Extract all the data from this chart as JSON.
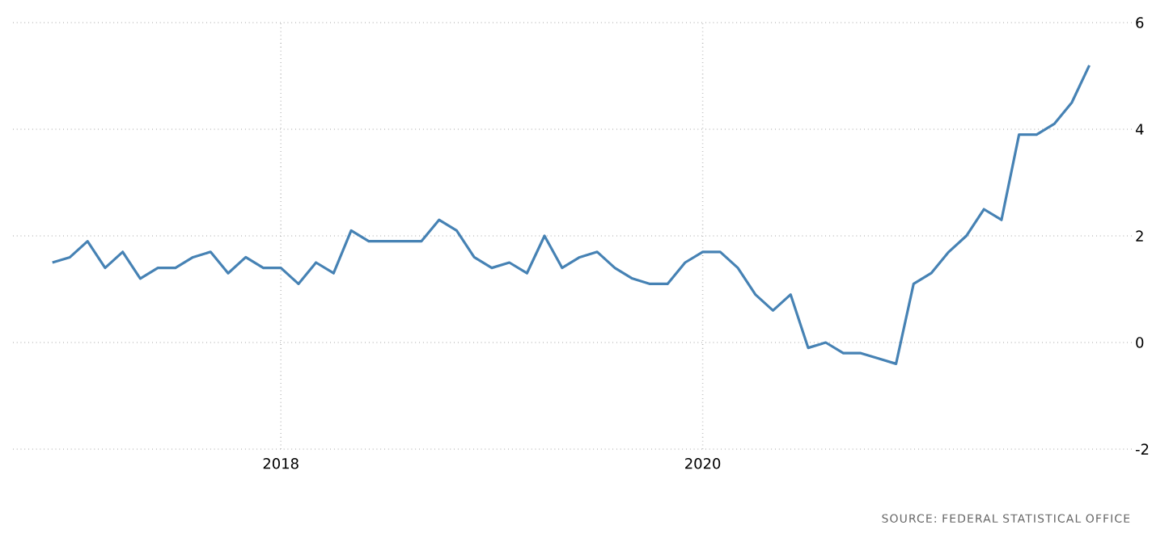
{
  "chart_data": {
    "type": "line",
    "x": [
      "2016-12",
      "2017-01",
      "2017-02",
      "2017-03",
      "2017-04",
      "2017-05",
      "2017-06",
      "2017-07",
      "2017-08",
      "2017-09",
      "2017-10",
      "2017-11",
      "2017-12",
      "2018-01",
      "2018-02",
      "2018-03",
      "2018-04",
      "2018-05",
      "2018-06",
      "2018-07",
      "2018-08",
      "2018-09",
      "2018-10",
      "2018-11",
      "2018-12",
      "2019-01",
      "2019-02",
      "2019-03",
      "2019-04",
      "2019-05",
      "2019-06",
      "2019-07",
      "2019-08",
      "2019-09",
      "2019-10",
      "2019-11",
      "2019-12",
      "2020-01",
      "2020-02",
      "2020-03",
      "2020-04",
      "2020-05",
      "2020-06",
      "2020-07",
      "2020-08",
      "2020-09",
      "2020-10",
      "2020-11",
      "2020-12",
      "2021-01",
      "2021-02",
      "2021-03",
      "2021-04",
      "2021-05",
      "2021-06",
      "2021-07",
      "2021-08",
      "2021-09",
      "2021-10",
      "2021-11"
    ],
    "series": [
      {
        "color": "#4682b4",
        "values": [
          1.5,
          1.6,
          1.9,
          1.4,
          1.7,
          1.2,
          1.4,
          1.4,
          1.6,
          1.7,
          1.3,
          1.6,
          1.4,
          1.4,
          1.1,
          1.5,
          1.3,
          2.1,
          1.9,
          1.9,
          1.9,
          1.9,
          2.3,
          2.1,
          1.6,
          1.4,
          1.5,
          1.3,
          2.0,
          1.4,
          1.6,
          1.7,
          1.4,
          1.2,
          1.1,
          1.1,
          1.5,
          1.7,
          1.7,
          1.4,
          0.9,
          0.6,
          0.9,
          -0.1,
          0.0,
          -0.2,
          -0.2,
          -0.3,
          -0.4,
          1.1,
          1.3,
          1.7,
          2.0,
          2.5,
          2.3,
          3.9,
          3.9,
          4.1,
          4.5,
          5.2
        ]
      }
    ],
    "xlim": [
      "2016-09-24",
      "2022-01-15"
    ],
    "xticks": [
      {
        "value": "2018-01",
        "label": "2018"
      },
      {
        "value": "2020-01",
        "label": "2020"
      }
    ],
    "ylim": [
      -2,
      6
    ],
    "yticks": [
      -2,
      0,
      2,
      4,
      6
    ],
    "grid": true,
    "line_style": "solid",
    "marker": "none",
    "annotations": [
      "SOURCE: FEDERAL STATISTICAL OFFICE"
    ]
  }
}
